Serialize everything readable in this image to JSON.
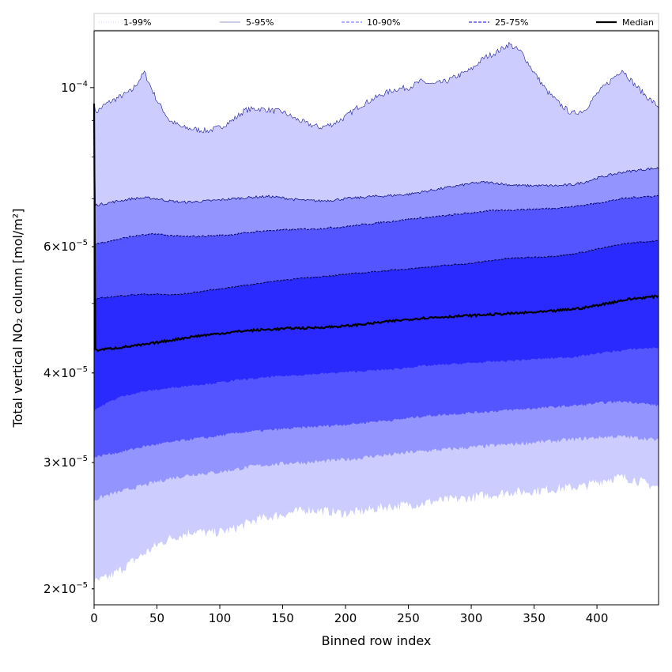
{
  "chart_data": {
    "type": "area",
    "title": "",
    "xlabel": "Binned row index",
    "ylabel": "Total vertical NO₂ column [mol/m²]",
    "yscale": "log",
    "xlim": [
      0,
      449
    ],
    "ylim": [
      1.9e-05,
      0.00012
    ],
    "grid": false,
    "legend_position": "top",
    "x_ticks": [
      0,
      50,
      100,
      150,
      200,
      250,
      300,
      350,
      400
    ],
    "x_tick_labels": [
      "0",
      "50",
      "100",
      "150",
      "200",
      "250",
      "300",
      "350",
      "400"
    ],
    "y_ticks": [
      2e-05,
      3e-05,
      4e-05,
      6e-05,
      0.0001
    ],
    "y_tick_mantissa": [
      "2",
      "3",
      "4",
      "6",
      "10"
    ],
    "y_tick_exponent": [
      "−5",
      "−5",
      "−5",
      "−5",
      "−4"
    ],
    "y_tick_has_mantissa": [
      true,
      true,
      true,
      true,
      false
    ],
    "x": [
      0,
      10,
      20,
      30,
      40,
      50,
      60,
      70,
      80,
      90,
      100,
      110,
      120,
      130,
      140,
      150,
      160,
      170,
      180,
      190,
      200,
      210,
      220,
      230,
      240,
      250,
      260,
      270,
      280,
      290,
      300,
      310,
      320,
      330,
      340,
      350,
      360,
      370,
      380,
      390,
      400,
      410,
      420,
      430,
      440,
      449
    ],
    "bands": [
      {
        "name": "1-99%",
        "fill": "#ccccff",
        "line_color": "#ccccff",
        "line_style": "dotted",
        "lower": [
          2.04e-05,
          2.07e-05,
          2.12e-05,
          2.18e-05,
          2.24e-05,
          2.3e-05,
          2.35e-05,
          2.38e-05,
          2.41e-05,
          2.39e-05,
          2.4e-05,
          2.42e-05,
          2.46e-05,
          2.5e-05,
          2.52e-05,
          2.54e-05,
          2.56e-05,
          2.58e-05,
          2.57e-05,
          2.56e-05,
          2.55e-05,
          2.56e-05,
          2.58e-05,
          2.6e-05,
          2.61e-05,
          2.62e-05,
          2.63e-05,
          2.65e-05,
          2.66e-05,
          2.67e-05,
          2.68e-05,
          2.7e-05,
          2.71e-05,
          2.73e-05,
          2.73e-05,
          2.74e-05,
          2.75e-05,
          2.76e-05,
          2.77e-05,
          2.78e-05,
          2.82e-05,
          2.85e-05,
          2.86e-05,
          2.84e-05,
          2.8e-05,
          2.77e-05
        ],
        "upper": [
          9.2e-05,
          9.5e-05,
          9.7e-05,
          9.9e-05,
          0.000105,
          9.6e-05,
          9e-05,
          8.8e-05,
          8.75e-05,
          8.7e-05,
          8.8e-05,
          9e-05,
          9.3e-05,
          9.35e-05,
          9.3e-05,
          9.25e-05,
          9.05e-05,
          8.9e-05,
          8.8e-05,
          8.9e-05,
          9.1e-05,
          9.4e-05,
          9.6e-05,
          9.8e-05,
          9.95e-05,
          0.0001,
          0.000102,
          0.000101,
          0.000102,
          0.000104,
          0.000106,
          0.00011,
          0.000112,
          0.000115,
          0.000112,
          0.000105,
          9.9e-05,
          9.5e-05,
          9.2e-05,
          9.3e-05,
          9.8e-05,
          0.000102,
          0.000106,
          0.000101,
          9.7e-05,
          9.4e-05
        ]
      },
      {
        "name": "5-95%",
        "fill": "#9494ff",
        "line_color": "#00007a",
        "line_style": "solid-thin",
        "lower": [
          2.66e-05,
          2.7e-05,
          2.73e-05,
          2.76e-05,
          2.79e-05,
          2.82e-05,
          2.85e-05,
          2.87e-05,
          2.89e-05,
          2.9e-05,
          2.91e-05,
          2.93e-05,
          2.95e-05,
          2.97e-05,
          2.98e-05,
          2.99e-05,
          3e-05,
          3e-05,
          3.01e-05,
          3.02e-05,
          3.03e-05,
          3.04e-05,
          3.06e-05,
          3.07e-05,
          3.08e-05,
          3.1e-05,
          3.11e-05,
          3.12e-05,
          3.13e-05,
          3.14e-05,
          3.15e-05,
          3.16e-05,
          3.17e-05,
          3.18e-05,
          3.19e-05,
          3.2e-05,
          3.21e-05,
          3.22e-05,
          3.23e-05,
          3.24e-05,
          3.25e-05,
          3.26e-05,
          3.26e-05,
          3.25e-05,
          3.24e-05,
          3.22e-05
        ],
        "upper": [
          6.85e-05,
          6.9e-05,
          6.95e-05,
          7e-05,
          7.02e-05,
          7e-05,
          6.95e-05,
          6.92e-05,
          6.93e-05,
          6.95e-05,
          6.97e-05,
          7e-05,
          7.02e-05,
          7.04e-05,
          7.05e-05,
          7.02e-05,
          6.98e-05,
          6.96e-05,
          6.95e-05,
          6.97e-05,
          7e-05,
          7.02e-05,
          7.05e-05,
          7.06e-05,
          7.08e-05,
          7.1e-05,
          7.15e-05,
          7.2e-05,
          7.25e-05,
          7.3e-05,
          7.35e-05,
          7.38e-05,
          7.36e-05,
          7.32e-05,
          7.3e-05,
          7.3e-05,
          7.3e-05,
          7.3e-05,
          7.32e-05,
          7.38e-05,
          7.48e-05,
          7.55e-05,
          7.62e-05,
          7.66e-05,
          7.7e-05,
          7.72e-05
        ]
      },
      {
        "name": "10-90%",
        "fill": "#5555ff",
        "line_color": "#000060",
        "line_style": "dashed",
        "lower": [
          3.05e-05,
          3.08e-05,
          3.1e-05,
          3.13e-05,
          3.16e-05,
          3.18e-05,
          3.2e-05,
          3.22e-05,
          3.24e-05,
          3.25e-05,
          3.27e-05,
          3.29e-05,
          3.31e-05,
          3.32e-05,
          3.33e-05,
          3.34e-05,
          3.35e-05,
          3.36e-05,
          3.37e-05,
          3.38e-05,
          3.39e-05,
          3.4e-05,
          3.42e-05,
          3.43e-05,
          3.44e-05,
          3.46e-05,
          3.48e-05,
          3.49e-05,
          3.5e-05,
          3.51e-05,
          3.52e-05,
          3.53e-05,
          3.54e-05,
          3.55e-05,
          3.56e-05,
          3.57e-05,
          3.58e-05,
          3.59e-05,
          3.6e-05,
          3.61e-05,
          3.63e-05,
          3.64e-05,
          3.65e-05,
          3.64e-05,
          3.62e-05,
          3.6e-05
        ],
        "upper": [
          6.05e-05,
          6.1e-05,
          6.15e-05,
          6.2e-05,
          6.23e-05,
          6.25e-05,
          6.22e-05,
          6.2e-05,
          6.2e-05,
          6.21e-05,
          6.22e-05,
          6.24e-05,
          6.27e-05,
          6.3e-05,
          6.32e-05,
          6.33e-05,
          6.34e-05,
          6.35e-05,
          6.36e-05,
          6.38e-05,
          6.4e-05,
          6.43e-05,
          6.46e-05,
          6.49e-05,
          6.52e-05,
          6.55e-05,
          6.58e-05,
          6.6e-05,
          6.63e-05,
          6.66e-05,
          6.69e-05,
          6.72e-05,
          6.74e-05,
          6.75e-05,
          6.76e-05,
          6.77e-05,
          6.78e-05,
          6.8e-05,
          6.82e-05,
          6.86e-05,
          6.9e-05,
          6.95e-05,
          7e-05,
          7.03e-05,
          7.05e-05,
          7.06e-05
        ]
      },
      {
        "name": "25-75%",
        "fill": "#2a2aff",
        "line_color": "#00003a",
        "line_style": "dashed",
        "lower": [
          3.55e-05,
          3.63e-05,
          3.7e-05,
          3.74e-05,
          3.77e-05,
          3.79e-05,
          3.81e-05,
          3.83e-05,
          3.85e-05,
          3.86e-05,
          3.88e-05,
          3.9e-05,
          3.92e-05,
          3.93e-05,
          3.95e-05,
          3.96e-05,
          3.97e-05,
          3.98e-05,
          3.99e-05,
          4e-05,
          4.01e-05,
          4.02e-05,
          4.03e-05,
          4.04e-05,
          4.05e-05,
          4.07e-05,
          4.09e-05,
          4.1e-05,
          4.11e-05,
          4.12e-05,
          4.13e-05,
          4.14e-05,
          4.15e-05,
          4.16e-05,
          4.17e-05,
          4.18e-05,
          4.19e-05,
          4.2e-05,
          4.21e-05,
          4.23e-05,
          4.26e-05,
          4.28e-05,
          4.3e-05,
          4.32e-05,
          4.33e-05,
          4.34e-05
        ],
        "upper": [
          5.07e-05,
          5.1e-05,
          5.12e-05,
          5.14e-05,
          5.15e-05,
          5.15e-05,
          5.14e-05,
          5.15e-05,
          5.18e-05,
          5.21e-05,
          5.24e-05,
          5.27e-05,
          5.3e-05,
          5.33e-05,
          5.36e-05,
          5.39e-05,
          5.41e-05,
          5.43e-05,
          5.45e-05,
          5.47e-05,
          5.49e-05,
          5.51e-05,
          5.53e-05,
          5.55e-05,
          5.57e-05,
          5.59e-05,
          5.61e-05,
          5.63e-05,
          5.65e-05,
          5.67e-05,
          5.69e-05,
          5.72e-05,
          5.75e-05,
          5.78e-05,
          5.79e-05,
          5.8e-05,
          5.81e-05,
          5.83e-05,
          5.86e-05,
          5.9e-05,
          5.95e-05,
          6e-05,
          6.05e-05,
          6.08e-05,
          6.1e-05,
          6.12e-05
        ]
      }
    ],
    "median": {
      "name": "Median",
      "color": "#000000",
      "values": [
        4.3e-05,
        4.32e-05,
        4.34e-05,
        4.36e-05,
        4.38e-05,
        4.41e-05,
        4.44e-05,
        4.47e-05,
        4.5e-05,
        4.52e-05,
        4.54e-05,
        4.56e-05,
        4.58e-05,
        4.59e-05,
        4.6e-05,
        4.61e-05,
        4.62e-05,
        4.62e-05,
        4.63e-05,
        4.64e-05,
        4.65e-05,
        4.67e-05,
        4.69e-05,
        4.71e-05,
        4.73e-05,
        4.75e-05,
        4.77e-05,
        4.78e-05,
        4.79e-05,
        4.8e-05,
        4.81e-05,
        4.82e-05,
        4.83e-05,
        4.84e-05,
        4.85e-05,
        4.86e-05,
        4.87e-05,
        4.89e-05,
        4.91e-05,
        4.93e-05,
        4.97e-05,
        5.01e-05,
        5.05e-05,
        5.08e-05,
        5.1e-05,
        5.12e-05
      ]
    },
    "left_spike_peak": 9.5e-05,
    "legend": [
      {
        "label": "1-99%",
        "color": "#ccccff",
        "style": "dotted"
      },
      {
        "label": "5-95%",
        "color": "#7777bb",
        "style": "solid-thin"
      },
      {
        "label": "10-90%",
        "color": "#9999ff",
        "style": "dashed"
      },
      {
        "label": "25-75%",
        "color": "#5555ee",
        "style": "dashed"
      },
      {
        "label": "Median",
        "color": "#000000",
        "style": "solid-thick"
      }
    ]
  }
}
